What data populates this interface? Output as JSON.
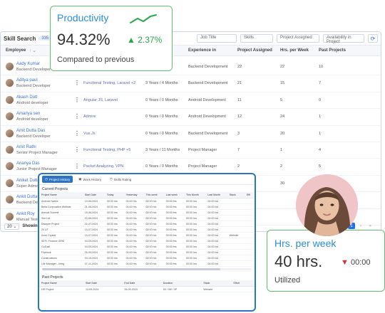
{
  "main": {
    "title": "Skill Search",
    "count": "335",
    "filters": [
      "Job Title",
      "Skills",
      "Project Assigned",
      "Availability in Project"
    ],
    "columns": [
      "Employee",
      "Experience in",
      "Project Assigned",
      "Hrs. per Week",
      "Past Projects"
    ],
    "rows": [
      {
        "name": "Aady Kumar",
        "role": "Backend Developer",
        "skills": "",
        "exp": "",
        "area": "Backend Development",
        "projects": "22",
        "hrs": "22",
        "past": "10"
      },
      {
        "name": "Aditya paul",
        "role": "Backend Developer",
        "skills": "Functional Testing, Laravel +2",
        "exp": "3 Years / 4 Months",
        "area": "Backend Development",
        "projects": "21",
        "hrs": "15",
        "past": "7"
      },
      {
        "name": "Akash Dutt",
        "role": "Android developer",
        "skills": "Angular JS, Laravel",
        "exp": "0 Years / 0 Months",
        "area": "Android Development",
        "projects": "11",
        "hrs": "5",
        "past": "0"
      },
      {
        "name": "Amariya sen",
        "role": "Android developer",
        "skills": "Admire",
        "exp": "0 Years / 0 Months",
        "area": "Android Development",
        "projects": "12",
        "hrs": "24",
        "past": "1"
      },
      {
        "name": "Amit Dutta Das",
        "role": "Backend Developer",
        "skills": "Vue.Js",
        "exp": "0 Years / 0 Months",
        "area": "Backend Development",
        "projects": "3",
        "hrs": "20",
        "past": "1"
      },
      {
        "name": "Amit Rathi",
        "role": "Senior Project Manager",
        "skills": "Functional Testing, PHP +5",
        "exp": "3 Years / 11 Months",
        "area": "Project Manager",
        "projects": "7",
        "hrs": "1",
        "past": "4"
      },
      {
        "name": "Ananya Das",
        "role": "Junior Project Manager",
        "skills": "Packet Analyzing, VPN",
        "exp": "0 Years / 0 Months",
        "area": "Project Manager",
        "projects": "2",
        "hrs": "2",
        "past": "5"
      },
      {
        "name": "Aniket Dutta",
        "role": "Super Admin",
        "skills": "",
        "exp": "",
        "area": "",
        "projects": "",
        "hrs": "30",
        "past": ""
      },
      {
        "name": "Ankit Dutta",
        "role": "Backend Develo",
        "skills": "",
        "exp": "",
        "area": "",
        "projects": "",
        "hrs": "",
        "past": ""
      },
      {
        "name": "Ankit Roy",
        "role": "Manual Tester",
        "skills": "",
        "exp": "",
        "area": "",
        "projects": "",
        "hrs": "",
        "past": ""
      }
    ],
    "page_size": "20",
    "showing": "Showin",
    "pager": [
      "«",
      "‹",
      "1",
      "›",
      "»"
    ]
  },
  "productivity": {
    "label": "Productivity",
    "value": "94.32%",
    "delta": "2.37%",
    "sub": "Compared to previous"
  },
  "hrs": {
    "label": "Hrs. per week",
    "value": "40 hrs.",
    "delta": "00:00",
    "sub": "Utilized"
  },
  "history": {
    "tabs": [
      "Project History",
      "Work History",
      "Skills Rating"
    ],
    "current_title": "Current Projects",
    "current_columns": [
      "Project Name",
      "Start Date",
      "Today",
      "Yesterday",
      "This week",
      "Last week",
      "This Month",
      "Last Month",
      "Stack",
      "Effi"
    ],
    "current_rows": [
      [
        "Android Native",
        "10-06-2024",
        "00:00 hrs",
        "00:00 hrs",
        "00:00 hrs",
        "00:00 hrs",
        "00:00 hrs",
        "00:00 hrs",
        "",
        ""
      ],
      [
        "Bella Corporation Website",
        "21-06-2024",
        "00:00 hrs",
        "00:00 hrs",
        "00:00 hrs",
        "00:00 hrs",
        "00:00 hrs",
        "00:00 hrs",
        "",
        ""
      ],
      [
        "Annual Summit",
        "15-06-2024",
        "00:00 hrs",
        "00:00 hrs",
        "00:00 hrs",
        "00:00 hrs",
        "00:00 hrs",
        "00:00 hrs",
        "",
        ""
      ],
      [
        "Sim Ltd.",
        "22-06-2024",
        "00:00 hrs",
        "00:00 hrs",
        "00:00 hrs",
        "00:00 hrs",
        "00:00 hrs",
        "00:00 hrs",
        "",
        ""
      ],
      [
        "Dwayne Project",
        "22-07-2024",
        "00:00 hrs",
        "00:00 hrs",
        "00:00 hrs",
        "00:00 hrs",
        "00:00 hrs",
        "00:00 hrs",
        "",
        ""
      ],
      [
        "20 UT",
        "10-07-2024",
        "00:00 hrs",
        "00:00 hrs",
        "00:00 hrs",
        "00:00 hrs",
        "00:00 hrs",
        "00:00 hrs",
        "",
        ""
      ],
      [
        "Avon Crystal",
        "10-07-2024",
        "00:00 hrs",
        "00:00 hrs",
        "00:00 hrs",
        "00:00 hrs",
        "00:00 hrs",
        "00:00 hrs",
        "Website",
        ""
      ],
      [
        "SEFL Finance GRM",
        "04-09-2024",
        "00:00 hrs",
        "00:00 hrs",
        "00:00 hrs",
        "00:00 hrs",
        "00:00 hrs",
        "00:00 hrs",
        "",
        ""
      ],
      [
        "GoGalli",
        "04-09-2024",
        "00:00 hrs",
        "00:00 hrs",
        "00:00 hrs",
        "00:00 hrs",
        "00:00 hrs",
        "00:00 hrs",
        "",
        ""
      ],
      [
        "Flipbook",
        "25-09-2024",
        "00:00 hrs",
        "00:00 hrs",
        "00:00 hrs",
        "00:00 hrs",
        "00:00 hrs",
        "00:00 hrs",
        "",
        ""
      ],
      [
        "Constructions",
        "03-10-2024",
        "00:00 hrs",
        "00:00 hrs",
        "00:00 hrs",
        "00:00 hrs",
        "00:00 hrs",
        "00:00 hrs",
        "",
        ""
      ],
      [
        "Life Manager - Integ.",
        "07-11-2024",
        "00:00 hrs",
        "00:00 hrs",
        "00:00 hrs",
        "00:00 hrs",
        "00:00 hrs",
        "00:00 hrs",
        "",
        ""
      ]
    ],
    "past_title": "Past Projects",
    "past_columns": [
      "Project Name",
      "Start Date",
      "End Date",
      "Duration",
      "Stack",
      "Effort"
    ],
    "past_rows": [
      [
        "HR Project",
        "12-09-2024",
        "26-09-2024",
        "00 / 0M / 0P",
        "Website",
        ""
      ]
    ]
  },
  "colors": {
    "accent": "#2b8ed8",
    "green_border": "#63c06a",
    "panel_border": "#2c73c2",
    "up": "#2aa84a",
    "down": "#d63232"
  }
}
